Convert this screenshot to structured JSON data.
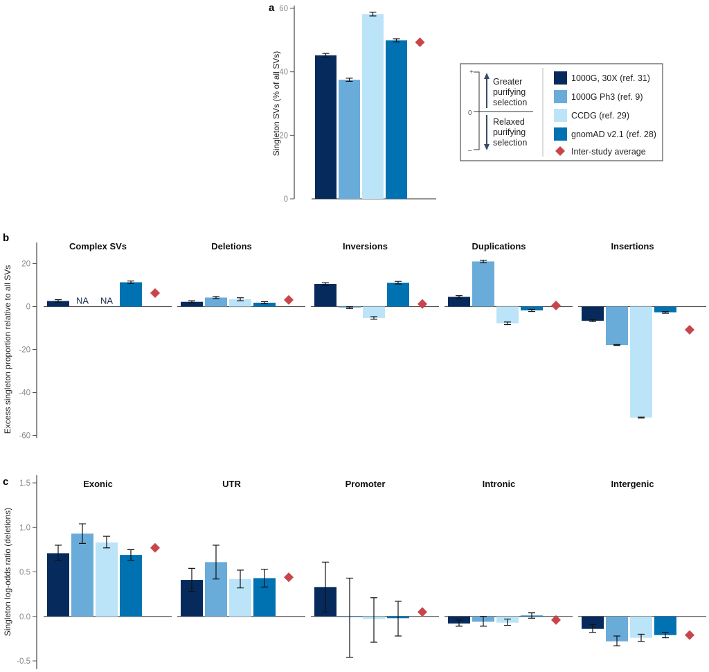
{
  "colors": {
    "axis": "#555555",
    "error_bar": "#111111",
    "average_marker": "#c8464a"
  },
  "series": [
    {
      "key": "g30x",
      "name": "1000G, 30X (ref. 31)",
      "color": "#062a5c"
    },
    {
      "key": "ph3",
      "name": "1000G Ph3 (ref. 9)",
      "color": "#6aacd9"
    },
    {
      "key": "ccdg",
      "name": "CCDG (ref. 29)",
      "color": "#bce4f8"
    },
    {
      "key": "gnomad",
      "name": "gnomAD v2.1 (ref. 28)",
      "color": "#0072b2"
    }
  ],
  "legend": {
    "scale": {
      "plus": "+",
      "zero": "0",
      "minus": "–",
      "up_text": [
        "Greater",
        "purifying",
        "selection"
      ],
      "down_text": [
        "Relaxed",
        "purifying",
        "selection"
      ]
    },
    "entries": [
      {
        "label": "1000G, 30X (ref. 31)",
        "kind": "square",
        "color": "#062a5c"
      },
      {
        "label": "1000G Ph3 (ref. 9)",
        "kind": "square",
        "color": "#6aacd9"
      },
      {
        "label": "CCDG (ref. 29)",
        "kind": "square",
        "color": "#bce4f8"
      },
      {
        "label": "gnomAD v2.1 (ref. 28)",
        "kind": "square",
        "color": "#0072b2"
      },
      {
        "label": "Inter-study average",
        "kind": "diamond",
        "color": "#c8464a"
      }
    ]
  },
  "chart_data": [
    {
      "panel": "a",
      "type": "bar",
      "title": "",
      "ylabel": "Singleton SVs (% of all SVs)",
      "xlabel": "",
      "ylim": [
        0,
        60
      ],
      "yticks": [
        0,
        20,
        40,
        60
      ],
      "ytick_labels": [
        "0",
        "20",
        "40",
        "60"
      ],
      "grid": false,
      "legend": "right",
      "facets": [
        {
          "title": "",
          "values": [
            45.2,
            37.5,
            58.2,
            49.9
          ],
          "errors": [
            [
              44.6,
              45.8
            ],
            [
              37.0,
              38.0
            ],
            [
              57.6,
              58.8
            ],
            [
              49.4,
              50.4
            ]
          ],
          "average": 49.3,
          "na": []
        }
      ]
    },
    {
      "panel": "b",
      "type": "bar",
      "title": "",
      "ylabel": "Excess singleton proportion relative to all SVs",
      "xlabel": "",
      "ylim": [
        -60,
        20
      ],
      "yticks": [
        -60,
        -40,
        -20,
        0,
        20
      ],
      "ytick_labels": [
        "-60",
        "-40",
        "-20",
        "0",
        "20"
      ],
      "grid": false,
      "facets": [
        {
          "title": "Complex SVs",
          "values": [
            2.6,
            null,
            null,
            11.3
          ],
          "errors": [
            [
              2.0,
              3.2
            ],
            null,
            null,
            [
              10.7,
              11.9
            ]
          ],
          "average": 6.3,
          "na": [
            "NA",
            "NA"
          ]
        },
        {
          "title": "Deletions",
          "values": [
            2.2,
            4.2,
            3.4,
            1.8
          ],
          "errors": [
            [
              1.7,
              2.7
            ],
            [
              3.7,
              4.7
            ],
            [
              2.7,
              4.1
            ],
            [
              1.3,
              2.3
            ]
          ],
          "average": 3.1,
          "na": []
        },
        {
          "title": "Inversions",
          "values": [
            10.5,
            -0.5,
            -5.3,
            11.1
          ],
          "errors": [
            [
              9.9,
              11.1
            ],
            [
              -0.9,
              -0.1
            ],
            [
              -5.9,
              -4.7
            ],
            [
              10.5,
              11.7
            ]
          ],
          "average": 1.2,
          "na": []
        },
        {
          "title": "Duplications",
          "values": [
            4.5,
            21.0,
            -7.8,
            -1.8
          ],
          "errors": [
            [
              3.9,
              5.1
            ],
            [
              20.4,
              21.6
            ],
            [
              -8.4,
              -7.2
            ],
            [
              -2.3,
              -1.3
            ]
          ],
          "average": 0.5,
          "na": []
        },
        {
          "title": "Insertions",
          "values": [
            -6.6,
            -17.9,
            -51.7,
            -2.7
          ],
          "errors": [
            [
              -7.0,
              -6.2
            ],
            [
              -18.1,
              -17.7
            ],
            [
              -51.9,
              -51.5
            ],
            [
              -3.1,
              -2.3
            ]
          ],
          "average": -10.8,
          "na": []
        }
      ]
    },
    {
      "panel": "c",
      "type": "bar",
      "title": "",
      "ylabel": "Singleton log-odds ratio (deletions)",
      "xlabel": "",
      "ylim": [
        -0.55,
        1.55
      ],
      "yticks": [
        -0.5,
        0.0,
        0.5,
        1.0,
        1.5
      ],
      "ytick_labels": [
        "-0.5",
        "0.0",
        "0.5",
        "1.0",
        "1.5"
      ],
      "grid": false,
      "facets": [
        {
          "title": "Exonic",
          "values": [
            0.71,
            0.93,
            0.83,
            0.69
          ],
          "errors": [
            [
              0.63,
              0.8
            ],
            [
              0.82,
              1.04
            ],
            [
              0.77,
              0.9
            ],
            [
              0.63,
              0.75
            ]
          ],
          "average": 0.77,
          "na": []
        },
        {
          "title": "UTR",
          "values": [
            0.41,
            0.61,
            0.42,
            0.43
          ],
          "errors": [
            [
              0.28,
              0.54
            ],
            [
              0.42,
              0.8
            ],
            [
              0.32,
              0.52
            ],
            [
              0.33,
              0.53
            ]
          ],
          "average": 0.44,
          "na": []
        },
        {
          "title": "Promoter",
          "values": [
            0.33,
            -0.01,
            -0.03,
            -0.02
          ],
          "errors": [
            [
              0.05,
              0.61
            ],
            [
              -0.46,
              0.43
            ],
            [
              -0.29,
              0.21
            ],
            [
              -0.22,
              0.17
            ]
          ],
          "average": 0.05,
          "na": []
        },
        {
          "title": "Intronic",
          "values": [
            -0.08,
            -0.06,
            -0.07,
            0.01
          ],
          "errors": [
            [
              -0.11,
              -0.04
            ],
            [
              -0.11,
              0.0
            ],
            [
              -0.1,
              -0.03
            ],
            [
              -0.02,
              0.04
            ]
          ],
          "average": -0.04,
          "na": []
        },
        {
          "title": "Intergenic",
          "values": [
            -0.14,
            -0.28,
            -0.24,
            -0.21
          ],
          "errors": [
            [
              -0.18,
              -0.09
            ],
            [
              -0.33,
              -0.22
            ],
            [
              -0.28,
              -0.2
            ],
            [
              -0.24,
              -0.18
            ]
          ],
          "average": -0.21,
          "na": []
        }
      ]
    }
  ]
}
